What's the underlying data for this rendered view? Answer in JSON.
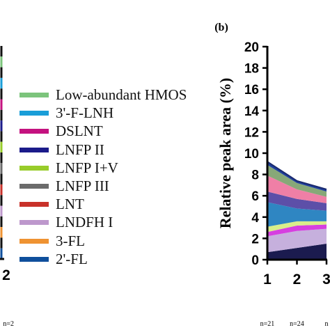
{
  "panel_a": {
    "x_tick": "2",
    "n_fragment": "n=2",
    "stripe_colors": [
      "#7cc47c",
      "#1a9ed8",
      "#c4127f",
      "#1b1b8a",
      "#98cc2a",
      "#6b6b6b",
      "#c8312a",
      "#bd98cc",
      "#ef9332",
      "#0f4f9c"
    ]
  },
  "legend": {
    "items": [
      {
        "label": "Low-abundant HMOS",
        "color": "#7cc47c",
        "icon": "line-swatch"
      },
      {
        "label": "3'-F-LNH",
        "color": "#1a9ed8",
        "icon": "line-swatch"
      },
      {
        "label": "DSLNT",
        "color": "#c4127f",
        "icon": "line-swatch"
      },
      {
        "label": "LNFP II",
        "color": "#1b1b8a",
        "icon": "line-swatch"
      },
      {
        "label": "LNFP I+V",
        "color": "#98cc2a",
        "icon": "line-swatch"
      },
      {
        "label": "LNFP III",
        "color": "#6b6b6b",
        "icon": "line-swatch"
      },
      {
        "label": "LNT",
        "color": "#c8312a",
        "icon": "line-swatch"
      },
      {
        "label": "LNDFH I",
        "color": "#bd98cc",
        "icon": "line-swatch"
      },
      {
        "label": "3-FL",
        "color": "#ef9332",
        "icon": "line-swatch"
      },
      {
        "label": "2'-FL",
        "color": "#0f4f9c",
        "icon": "line-swatch"
      }
    ]
  },
  "chart_data": {
    "type": "area",
    "panel_label": "(b)",
    "ylabel": "Relative peak area (%)",
    "xlabel": "",
    "ylim": [
      0,
      20
    ],
    "y_ticks": [
      0,
      2,
      4,
      6,
      8,
      10,
      12,
      14,
      16,
      18,
      20
    ],
    "x": [
      1,
      2,
      3
    ],
    "x_tick_labels": [
      "1",
      "2",
      "3"
    ],
    "n_labels": [
      "n=21",
      "n=24",
      "n"
    ],
    "series": [
      {
        "name": "Low-abundant HMOS",
        "color": "#1b1b4f",
        "values": [
          0.7,
          1.1,
          1.5
        ]
      },
      {
        "name": "LNDFH I",
        "color": "#c6b0dd",
        "values": [
          1.5,
          1.6,
          1.4
        ]
      },
      {
        "name": "DSLNT",
        "color": "#d63fe0",
        "values": [
          0.4,
          0.5,
          0.4
        ]
      },
      {
        "name": "LNFP I+V",
        "color": "#d9ee8a",
        "values": [
          0.5,
          0.4,
          0.3
        ]
      },
      {
        "name": "3'-F-LNH",
        "color": "#2f86c2",
        "values": [
          2.3,
          1.2,
          1.0
        ]
      },
      {
        "name": "LNFP II",
        "color": "#5d4fa8",
        "values": [
          1.0,
          0.9,
          0.7
        ]
      },
      {
        "name": "LNT",
        "color": "#ef7fa6",
        "values": [
          1.5,
          0.9,
          0.6
        ]
      },
      {
        "name": "LNFP III",
        "color": "#87a878",
        "values": [
          1.0,
          0.6,
          0.5
        ]
      },
      {
        "name": "2'-FL",
        "color": "#1f3f9c",
        "values": [
          0.3,
          0.2,
          0.2
        ]
      }
    ]
  }
}
